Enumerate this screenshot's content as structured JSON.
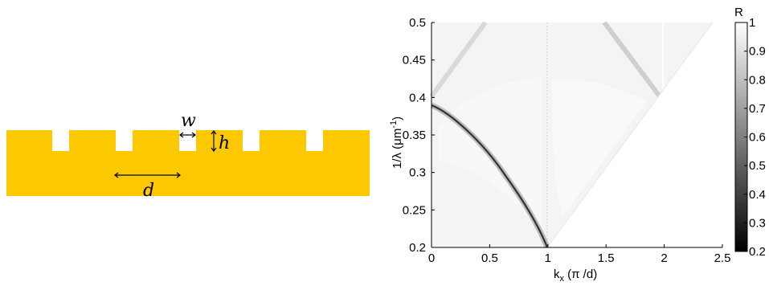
{
  "colors": {
    "gold": "#fcc900",
    "line": "#000000"
  },
  "schematic": {
    "labels": {
      "w": "w",
      "h": "h",
      "d": "d"
    }
  },
  "chart_data": {
    "type": "heatmap",
    "xlabel": {
      "main": "k",
      "sub": "x",
      "rest": " (π /d)"
    },
    "ylabel": {
      "main": "1/λ (μm",
      "sup": "-1",
      "close": ")"
    },
    "colorbar_title": "R",
    "xlim": [
      0,
      2.5
    ],
    "ylim": [
      0.2,
      0.5
    ],
    "xticks": [
      "0",
      "0.5",
      "1",
      "1.5",
      "2",
      "2.5"
    ],
    "yticks": [
      "0.2",
      "0.25",
      "0.3",
      "0.35",
      "0.4",
      "0.45",
      "0.5"
    ],
    "clim": [
      0.2,
      1
    ],
    "cticks": [
      "0.2",
      "0.3",
      "0.4",
      "0.5",
      "0.6",
      "0.7",
      "0.8",
      "0.9",
      "1"
    ],
    "colormap": "gray",
    "light_line_boundary": [
      [
        1,
        0.2
      ],
      [
        2,
        0.4
      ],
      [
        2.5,
        0.5
      ]
    ],
    "features": [
      {
        "name": "dark-band",
        "points": [
          [
            0,
            0.385
          ],
          [
            0.3,
            0.34
          ],
          [
            0.6,
            0.28
          ],
          [
            0.85,
            0.23
          ],
          [
            1.0,
            0.2
          ]
        ],
        "R": 0.2
      },
      {
        "name": "faint-line-upper-left",
        "points": [
          [
            0,
            0.4
          ],
          [
            0.5,
            0.5
          ]
        ],
        "R": 0.85
      },
      {
        "name": "faint-line-upper-right",
        "points": [
          [
            1.5,
            0.5
          ],
          [
            2,
            0.4
          ]
        ],
        "R": 0.8
      },
      {
        "name": "faint-vertical-line",
        "points": [
          [
            1,
            0.2
          ],
          [
            1,
            0.5
          ]
        ],
        "R": 0.9
      }
    ]
  }
}
